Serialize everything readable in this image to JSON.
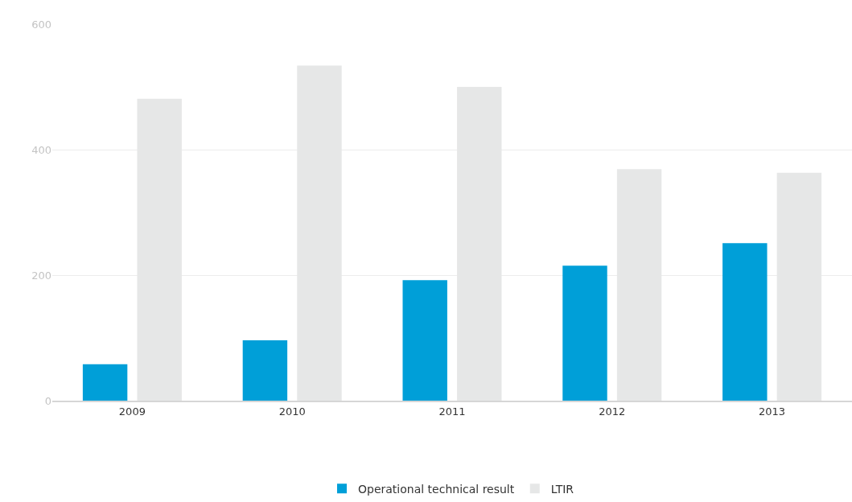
{
  "chart_data": {
    "type": "bar",
    "categories": [
      "2009",
      "2010",
      "2011",
      "2012",
      "2013"
    ],
    "series": [
      {
        "name": "Operational technical result",
        "color": "#009fd8",
        "values": [
          58,
          96,
          192,
          215,
          251
        ]
      },
      {
        "name": "LTIR",
        "color": "#e6e7e7",
        "values": [
          481,
          534,
          500,
          369,
          363
        ]
      }
    ],
    "ylim": [
      0,
      600
    ],
    "yticks": [
      0,
      200,
      400,
      600
    ],
    "grid": "y",
    "legend": "bottom"
  }
}
